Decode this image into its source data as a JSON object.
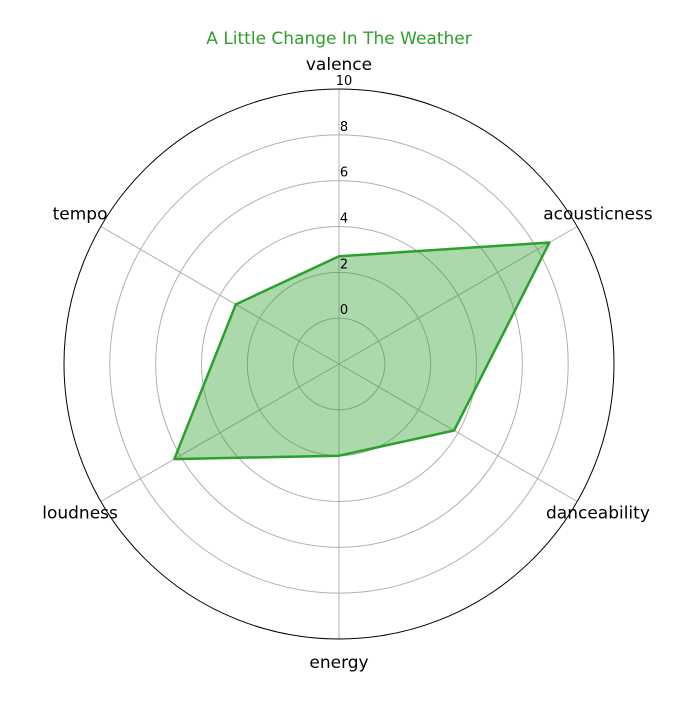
{
  "chart_data": {
    "type": "radar",
    "title": "A Little Change In The Weather",
    "title_color": "#2ca02c",
    "series_color": "#2ca02c",
    "fill_color": "#2ca02c",
    "fill_opacity": 0.4,
    "axes": [
      "valence",
      "acousticness",
      "danceability",
      "energy",
      "loudness",
      "tempo"
    ],
    "values": [
      2.7,
      8.6,
      3.8,
      2.0,
      6.3,
      3.2
    ],
    "rlim": [
      -2,
      10
    ],
    "rticks": [
      "0",
      "2",
      "4",
      "6",
      "8",
      "10"
    ],
    "rtick_values": [
      0,
      2,
      4,
      6,
      8,
      10
    ],
    "grid": true
  }
}
